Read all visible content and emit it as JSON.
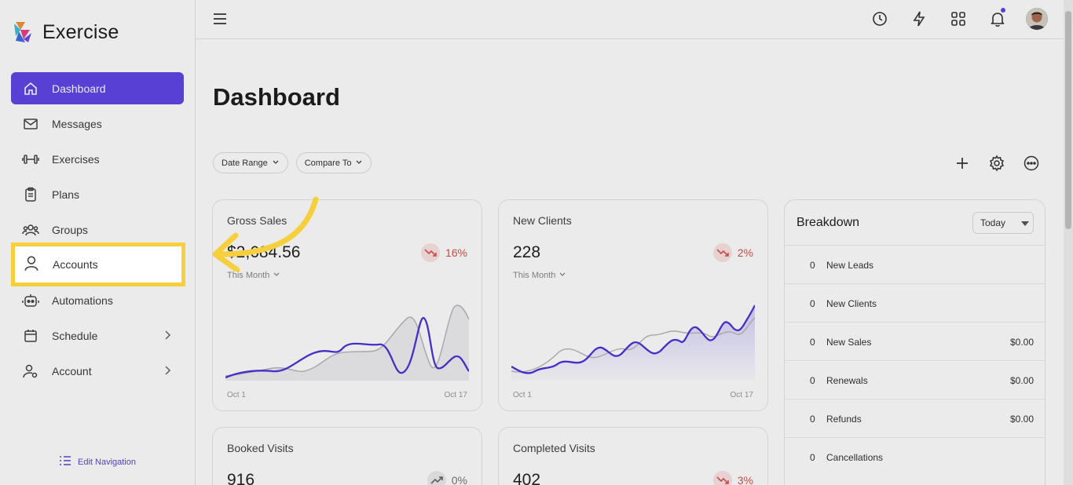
{
  "brand": {
    "name": "Exercise"
  },
  "sidebar": {
    "items": [
      {
        "label": "Dashboard",
        "icon": "home-icon",
        "active": true
      },
      {
        "label": "Messages",
        "icon": "mail-icon"
      },
      {
        "label": "Exercises",
        "icon": "dumbbell-icon"
      },
      {
        "label": "Plans",
        "icon": "clipboard-icon"
      },
      {
        "label": "Groups",
        "icon": "users-icon"
      },
      {
        "label": "Accounts",
        "icon": "user-icon"
      },
      {
        "label": "Automations",
        "icon": "robot-icon"
      },
      {
        "label": "Schedule",
        "icon": "calendar-icon",
        "chevron": true
      },
      {
        "label": "Account",
        "icon": "user-gear-icon",
        "chevron": true
      }
    ],
    "edit_nav": "Edit Navigation"
  },
  "topbar": {
    "icons": [
      "history-icon",
      "bolt-icon",
      "grid-icon",
      "bell-icon",
      "avatar"
    ]
  },
  "main": {
    "title": "Dashboard",
    "filters": [
      "Date Range",
      "Compare To"
    ],
    "actions": [
      "plus-icon",
      "gear-icon",
      "more-icon"
    ]
  },
  "cards": [
    {
      "title": "Gross Sales",
      "value": "$2,684.56",
      "change": "16%",
      "direction": "down",
      "period": "This Month",
      "x_start": "Oct 1",
      "x_end": "Oct 17"
    },
    {
      "title": "New Clients",
      "value": "228",
      "change": "2%",
      "direction": "down",
      "period": "This Month",
      "x_start": "Oct 1",
      "x_end": "Oct 17"
    },
    {
      "title": "Booked Visits",
      "value": "916",
      "change": "0%",
      "direction": "up"
    },
    {
      "title": "Completed Visits",
      "value": "402",
      "change": "3%",
      "direction": "down"
    }
  ],
  "breakdown": {
    "title": "Breakdown",
    "selected": "Today",
    "rows": [
      {
        "count": "0",
        "label": "New Leads",
        "amount": ""
      },
      {
        "count": "0",
        "label": "New Clients",
        "amount": ""
      },
      {
        "count": "0",
        "label": "New Sales",
        "amount": "$0.00"
      },
      {
        "count": "0",
        "label": "Renewals",
        "amount": "$0.00"
      },
      {
        "count": "0",
        "label": "Refunds",
        "amount": "$0.00"
      },
      {
        "count": "0",
        "label": "Cancellations",
        "amount": ""
      }
    ]
  },
  "colors": {
    "accent": "#6046e8",
    "highlight": "#f6cf3c",
    "down": "#d9534f"
  }
}
